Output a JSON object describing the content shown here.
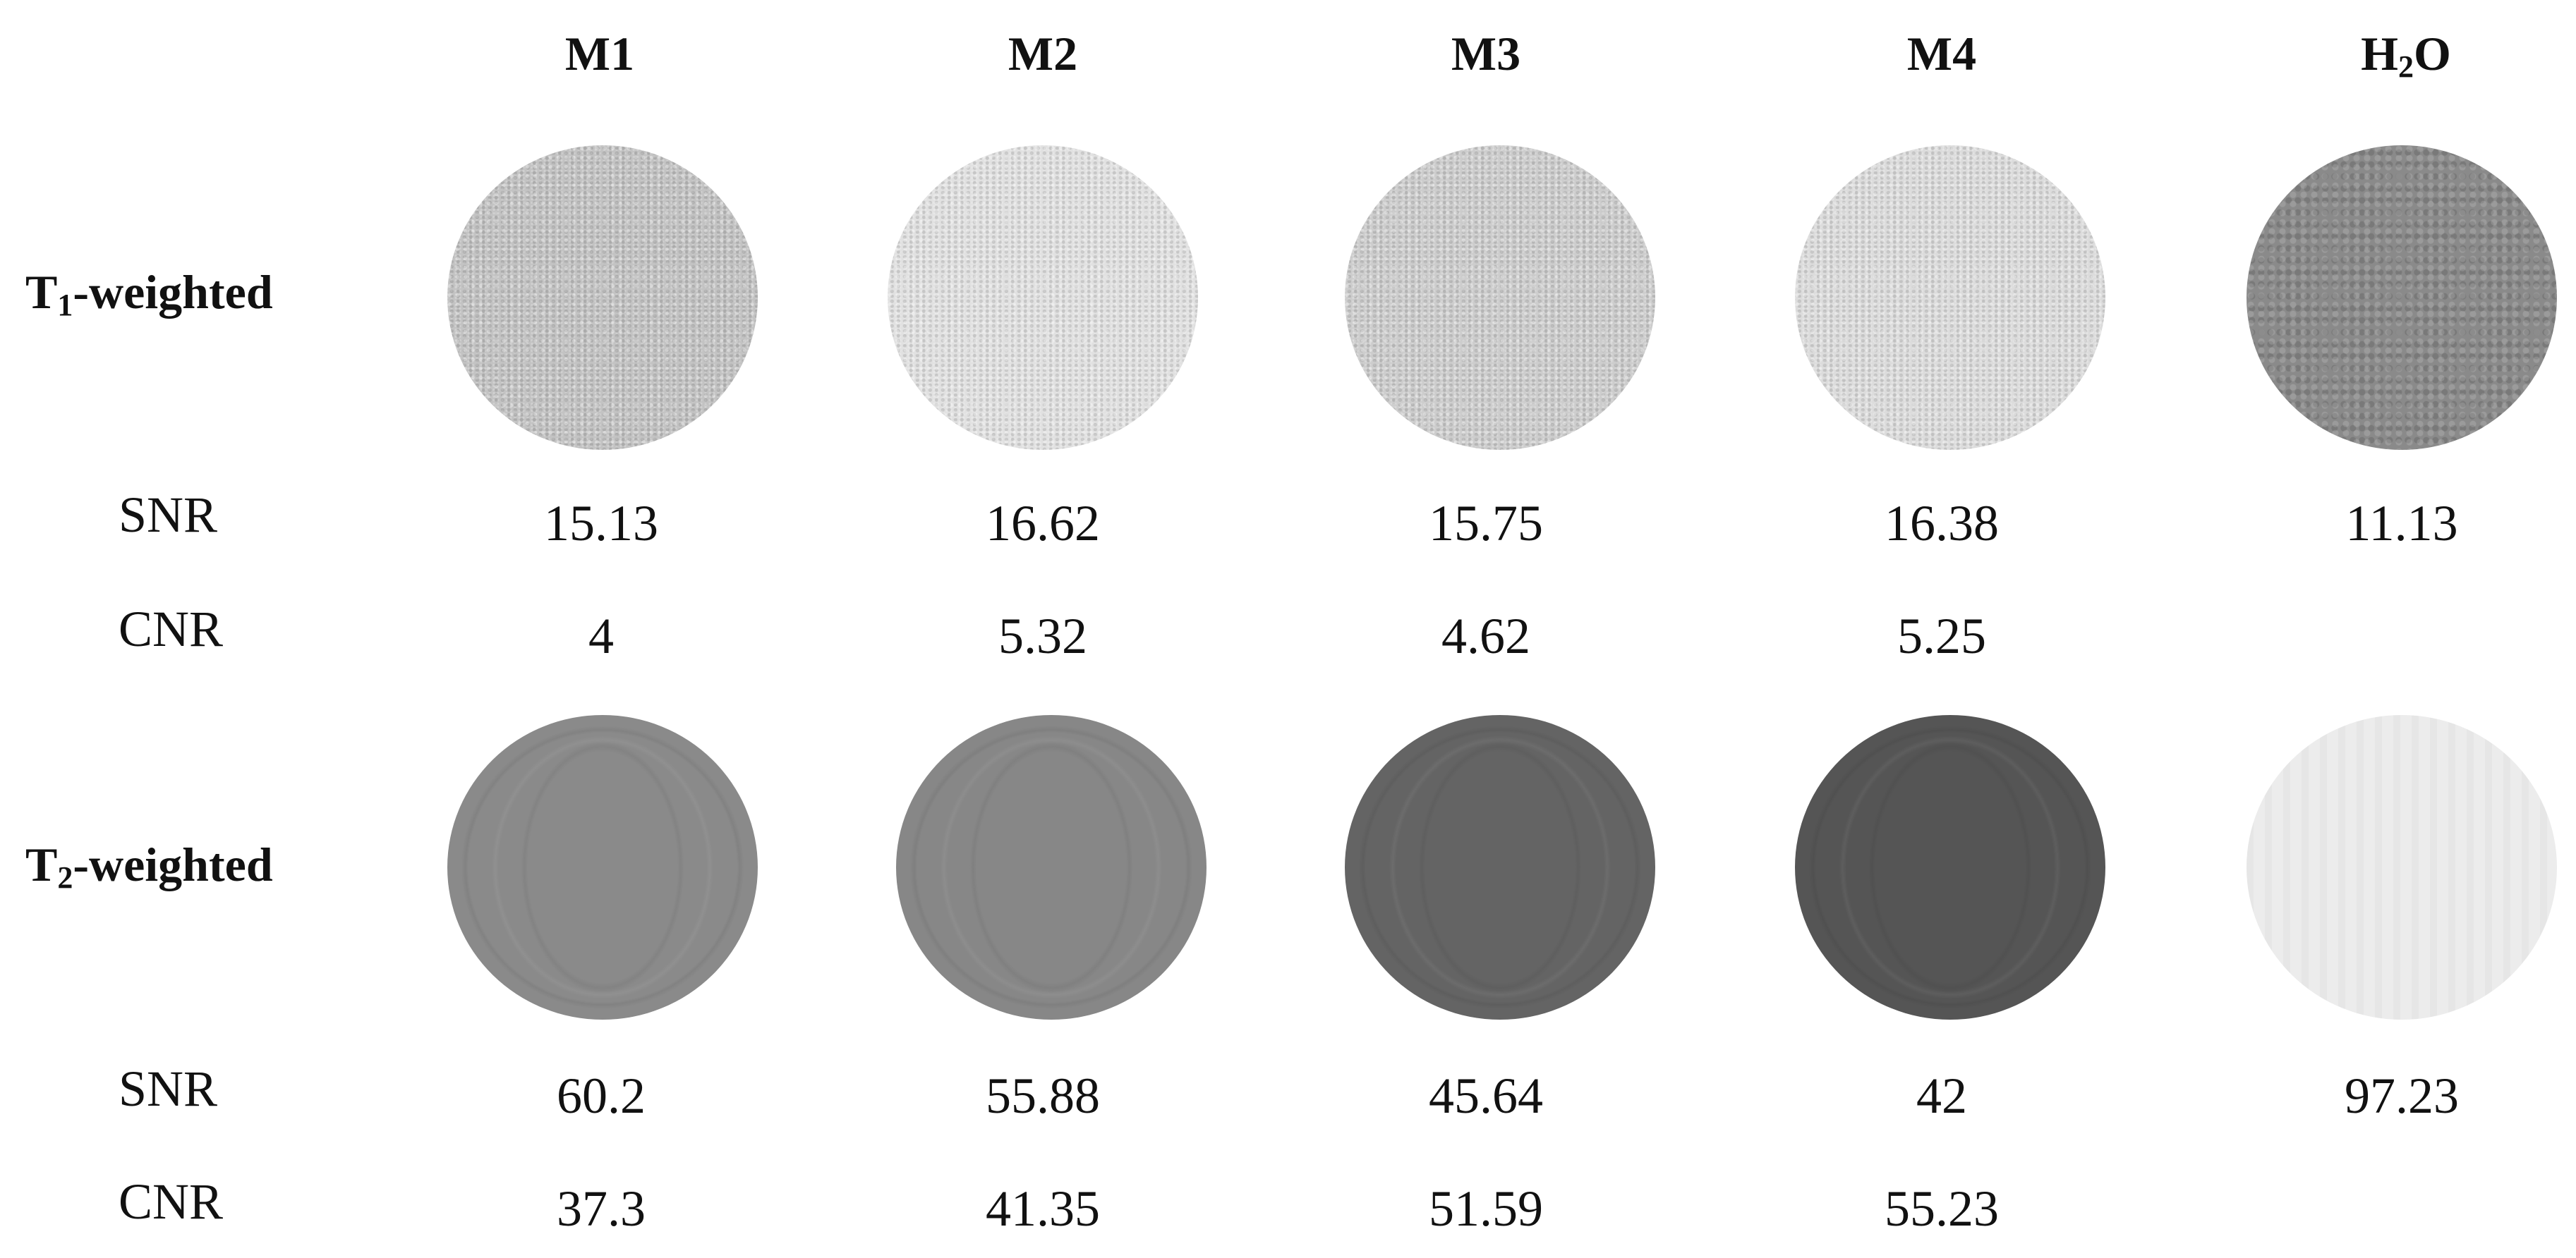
{
  "columns": [
    "M1",
    "M2",
    "M3",
    "M4"
  ],
  "water_column": {
    "main": "H",
    "sub": "2",
    "tail": "O"
  },
  "rows": [
    {
      "key": "t1",
      "label_main": "T",
      "label_sub": "1",
      "label_tail": "-weighted",
      "disk_colors": [
        "#c3c3c3",
        "#e1e1e1",
        "#cdcdcd",
        "#dcdcdc",
        "#8a8a8a"
      ],
      "metrics": [
        {
          "label": "SNR",
          "values": [
            "15.13",
            "16.62",
            "15.75",
            "16.38",
            "11.13"
          ]
        },
        {
          "label": "CNR",
          "values": [
            "4",
            "5.32",
            "4.62",
            "5.25",
            ""
          ]
        }
      ]
    },
    {
      "key": "t2",
      "label_main": "T",
      "label_sub": "2",
      "label_tail": "-weighted",
      "disk_colors": [
        "#8a8a8a",
        "#878787",
        "#646464",
        "#555555",
        "#ececec"
      ],
      "metrics": [
        {
          "label": "SNR",
          "values": [
            "60.2",
            "55.88",
            "45.64",
            "42",
            "97.23"
          ]
        },
        {
          "label": "CNR",
          "values": [
            "37.3",
            "41.35",
            "51.59",
            "55.23",
            ""
          ]
        }
      ]
    }
  ]
}
